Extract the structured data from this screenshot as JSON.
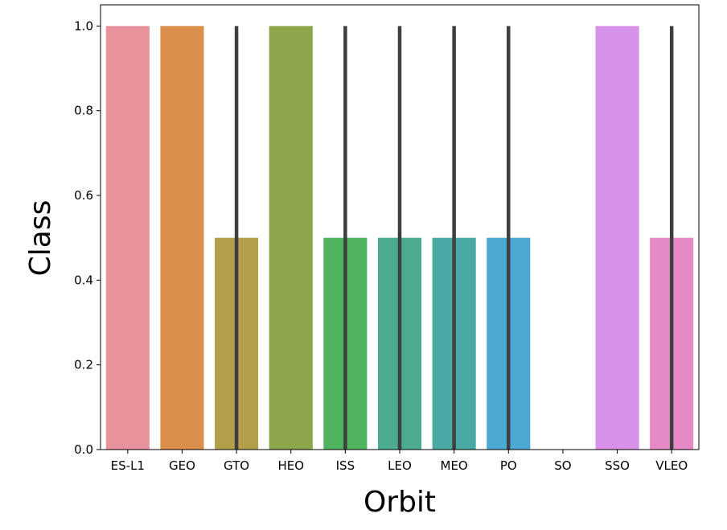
{
  "chart_data": {
    "type": "bar",
    "title": "",
    "xlabel": "Orbit",
    "ylabel": "Class",
    "categories": [
      "ES-L1",
      "GEO",
      "GTO",
      "HEO",
      "ISS",
      "LEO",
      "MEO",
      "PO",
      "SO",
      "SSO",
      "VLEO"
    ],
    "values": [
      1.0,
      1.0,
      0.5,
      1.0,
      0.5,
      0.5,
      0.5,
      0.5,
      0.0,
      1.0,
      0.5
    ],
    "error_bars": [
      [
        1.0,
        1.0
      ],
      [
        1.0,
        1.0
      ],
      [
        0.0,
        1.0
      ],
      [
        1.0,
        1.0
      ],
      [
        0.0,
        1.0
      ],
      [
        0.0,
        1.0
      ],
      [
        0.0,
        1.0
      ],
      [
        0.0,
        1.0
      ],
      [
        0.0,
        0.0
      ],
      [
        1.0,
        1.0
      ],
      [
        0.0,
        1.0
      ]
    ],
    "colors": [
      "#e8929c",
      "#db8f4c",
      "#b39f4b",
      "#8ea64b",
      "#4fb25f",
      "#4baa8f",
      "#4aa9a2",
      "#4da8d4",
      "#9fa8f5",
      "#d691e8",
      "#e68ac6"
    ],
    "error_color": "#3f3f3f",
    "ylim": [
      0,
      1.05
    ],
    "yticks": [
      0.0,
      0.2,
      0.4,
      0.6,
      0.8,
      1.0
    ],
    "ytick_labels": [
      "0.0",
      "0.2",
      "0.4",
      "0.6",
      "0.8",
      "1.0"
    ],
    "grid": false,
    "legend": "none"
  }
}
